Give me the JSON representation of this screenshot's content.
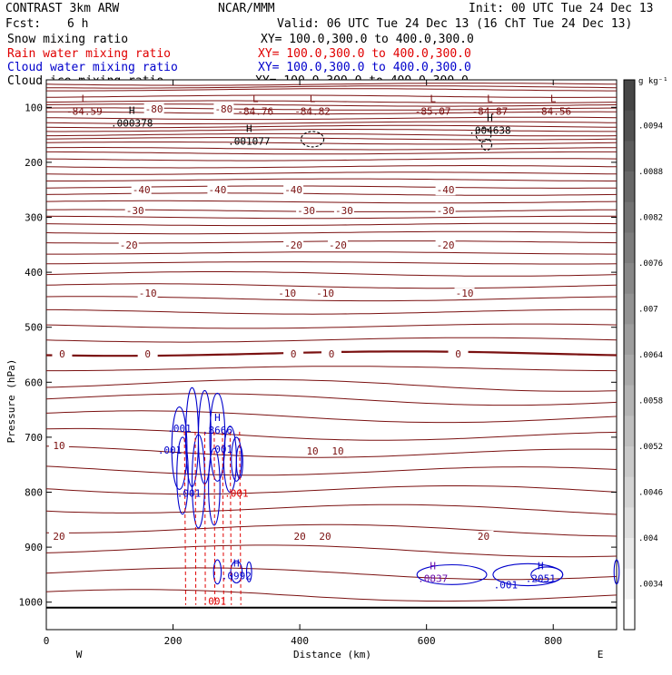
{
  "header": {
    "title": "CONTRAST  3km ARW",
    "fcst_label": "Fcst:",
    "fcst_value": "6 h",
    "center": "NCAR/MMM",
    "init": "Init: 00 UTC Tue 24 Dec 13",
    "valid": "Valid: 06 UTC Tue 24 Dec 13 (16 ChT Tue 24 Dec 13)"
  },
  "legend": [
    {
      "name": "Snow mixing ratio",
      "xy": "XY= 100.0,300.0 to 400.0,300.0",
      "color": "#000000"
    },
    {
      "name": "Rain water mixing ratio",
      "xy": "XY= 100.0,300.0 to 400.0,300.0",
      "color": "#e00000"
    },
    {
      "name": "Cloud water mixing ratio",
      "xy": "XY= 100.0,300.0 to 400.0,300.0",
      "color": "#0000cc"
    },
    {
      "name": "Cloud ice mixing ratio",
      "xy": "XY= 100.0,300.0 to 400.0,300.0",
      "color": "#000000"
    }
  ],
  "chart_data": {
    "type": "contour-cross-section",
    "xlabel": "Distance (km)",
    "ylabel": "Pressure (hPa)",
    "xlim": [
      0,
      900
    ],
    "ylim": [
      1050,
      50
    ],
    "x_ticks": [
      0,
      200,
      400,
      600,
      800
    ],
    "y_ticks": [
      100,
      200,
      300,
      400,
      500,
      600,
      700,
      800,
      900,
      1000
    ],
    "x_end_labels": {
      "left": "W",
      "right": "E"
    },
    "surface_pressure": 1010,
    "colorbar": {
      "unit": "g kg⁻¹",
      "labels": [
        ".0094",
        ".0088",
        ".0082",
        ".0076",
        ".007",
        ".0064",
        ".0058",
        ".0052",
        ".0046",
        ".004",
        ".0034"
      ]
    },
    "temperature_levels_pressure": [
      58,
      63,
      68,
      80,
      90,
      96,
      103,
      110,
      120,
      128,
      135,
      142,
      150,
      157,
      165,
      175,
      183,
      195,
      208,
      220,
      232,
      245,
      258,
      272,
      288,
      300,
      313,
      328,
      345,
      365,
      383,
      403,
      425,
      448,
      472,
      498,
      523,
      548,
      575,
      602,
      628,
      660,
      693,
      725,
      758,
      793,
      828,
      865,
      903,
      945,
      985
    ],
    "temperature_labels": [
      {
        "x": 170,
        "p": 103,
        "text": "-80"
      },
      {
        "x": 280,
        "p": 103,
        "text": "-80"
      },
      {
        "x": 150,
        "p": 250,
        "text": "-40"
      },
      {
        "x": 270,
        "p": 250,
        "text": "-40"
      },
      {
        "x": 390,
        "p": 250,
        "text": "-40"
      },
      {
        "x": 630,
        "p": 250,
        "text": "-40"
      },
      {
        "x": 140,
        "p": 288,
        "text": "-30"
      },
      {
        "x": 410,
        "p": 288,
        "text": "-30"
      },
      {
        "x": 470,
        "p": 288,
        "text": "-30"
      },
      {
        "x": 630,
        "p": 288,
        "text": "-30"
      },
      {
        "x": 130,
        "p": 350,
        "text": "-20"
      },
      {
        "x": 390,
        "p": 350,
        "text": "-20"
      },
      {
        "x": 460,
        "p": 350,
        "text": "-20"
      },
      {
        "x": 630,
        "p": 350,
        "text": "-20"
      },
      {
        "x": 160,
        "p": 438,
        "text": "-10"
      },
      {
        "x": 380,
        "p": 438,
        "text": "-10"
      },
      {
        "x": 440,
        "p": 438,
        "text": "-10"
      },
      {
        "x": 660,
        "p": 438,
        "text": "-10"
      },
      {
        "x": 25,
        "p": 548,
        "text": "0"
      },
      {
        "x": 160,
        "p": 548,
        "text": "0"
      },
      {
        "x": 390,
        "p": 548,
        "text": "0"
      },
      {
        "x": 450,
        "p": 548,
        "text": "0"
      },
      {
        "x": 650,
        "p": 548,
        "text": "0"
      },
      {
        "x": 20,
        "p": 715,
        "text": "10"
      },
      {
        "x": 420,
        "p": 725,
        "text": "10"
      },
      {
        "x": 460,
        "p": 725,
        "text": "10"
      },
      {
        "x": 20,
        "p": 880,
        "text": "20"
      },
      {
        "x": 400,
        "p": 880,
        "text": "20"
      },
      {
        "x": 440,
        "p": 880,
        "text": "20"
      },
      {
        "x": 690,
        "p": 880,
        "text": "20"
      }
    ],
    "extrema": [
      {
        "x": 60,
        "p": 100,
        "kind": "L",
        "value": "-84.59",
        "color": "#7a1010"
      },
      {
        "x": 330,
        "p": 100,
        "kind": "L",
        "value": "-84.76",
        "color": "#7a1010"
      },
      {
        "x": 420,
        "p": 100,
        "kind": "L",
        "value": "-84.82",
        "color": "#7a1010"
      },
      {
        "x": 610,
        "p": 100,
        "kind": "L",
        "value": "-85.07",
        "color": "#7a1010"
      },
      {
        "x": 700,
        "p": 100,
        "kind": "L",
        "value": "-84.87",
        "color": "#7a1010"
      },
      {
        "x": 800,
        "p": 100,
        "kind": "L",
        "value": "-84.56",
        "color": "#7a1010"
      },
      {
        "x": 135,
        "p": 122,
        "kind": "H",
        "value": ".000378",
        "color": "#000000"
      },
      {
        "x": 320,
        "p": 155,
        "kind": "H",
        "value": ".001077",
        "color": "#000000"
      },
      {
        "x": 700,
        "p": 135,
        "kind": "H",
        "value": ".004638",
        "color": "#000000"
      },
      {
        "x": 270,
        "p": 680,
        "kind": "H",
        "value": ".8666",
        "color": "#0000cc"
      },
      {
        "x": 300,
        "p": 945,
        "kind": "H",
        "value": ".0992",
        "color": "#0000cc"
      },
      {
        "x": 610,
        "p": 950,
        "kind": "H",
        "value": ".0837",
        "color": "#6a0dad"
      },
      {
        "x": 780,
        "p": 950,
        "kind": "H",
        "value": ".2051",
        "color": "#0000cc"
      }
    ],
    "small_labels": [
      {
        "x": 210,
        "p": 690,
        "text": ".001",
        "color": "#0000cc"
      },
      {
        "x": 195,
        "p": 730,
        "text": ".001",
        "color": "#0000cc"
      },
      {
        "x": 275,
        "p": 728,
        "text": ".001",
        "color": "#0000cc"
      },
      {
        "x": 225,
        "p": 808,
        "text": ".001",
        "color": "#0000cc"
      },
      {
        "x": 300,
        "p": 808,
        "text": ".001",
        "color": "#e00000"
      },
      {
        "x": 265,
        "p": 1005,
        "text": ".001",
        "color": "#e00000"
      },
      {
        "x": 725,
        "p": 975,
        "text": ".001",
        "color": "#0000cc"
      }
    ]
  }
}
